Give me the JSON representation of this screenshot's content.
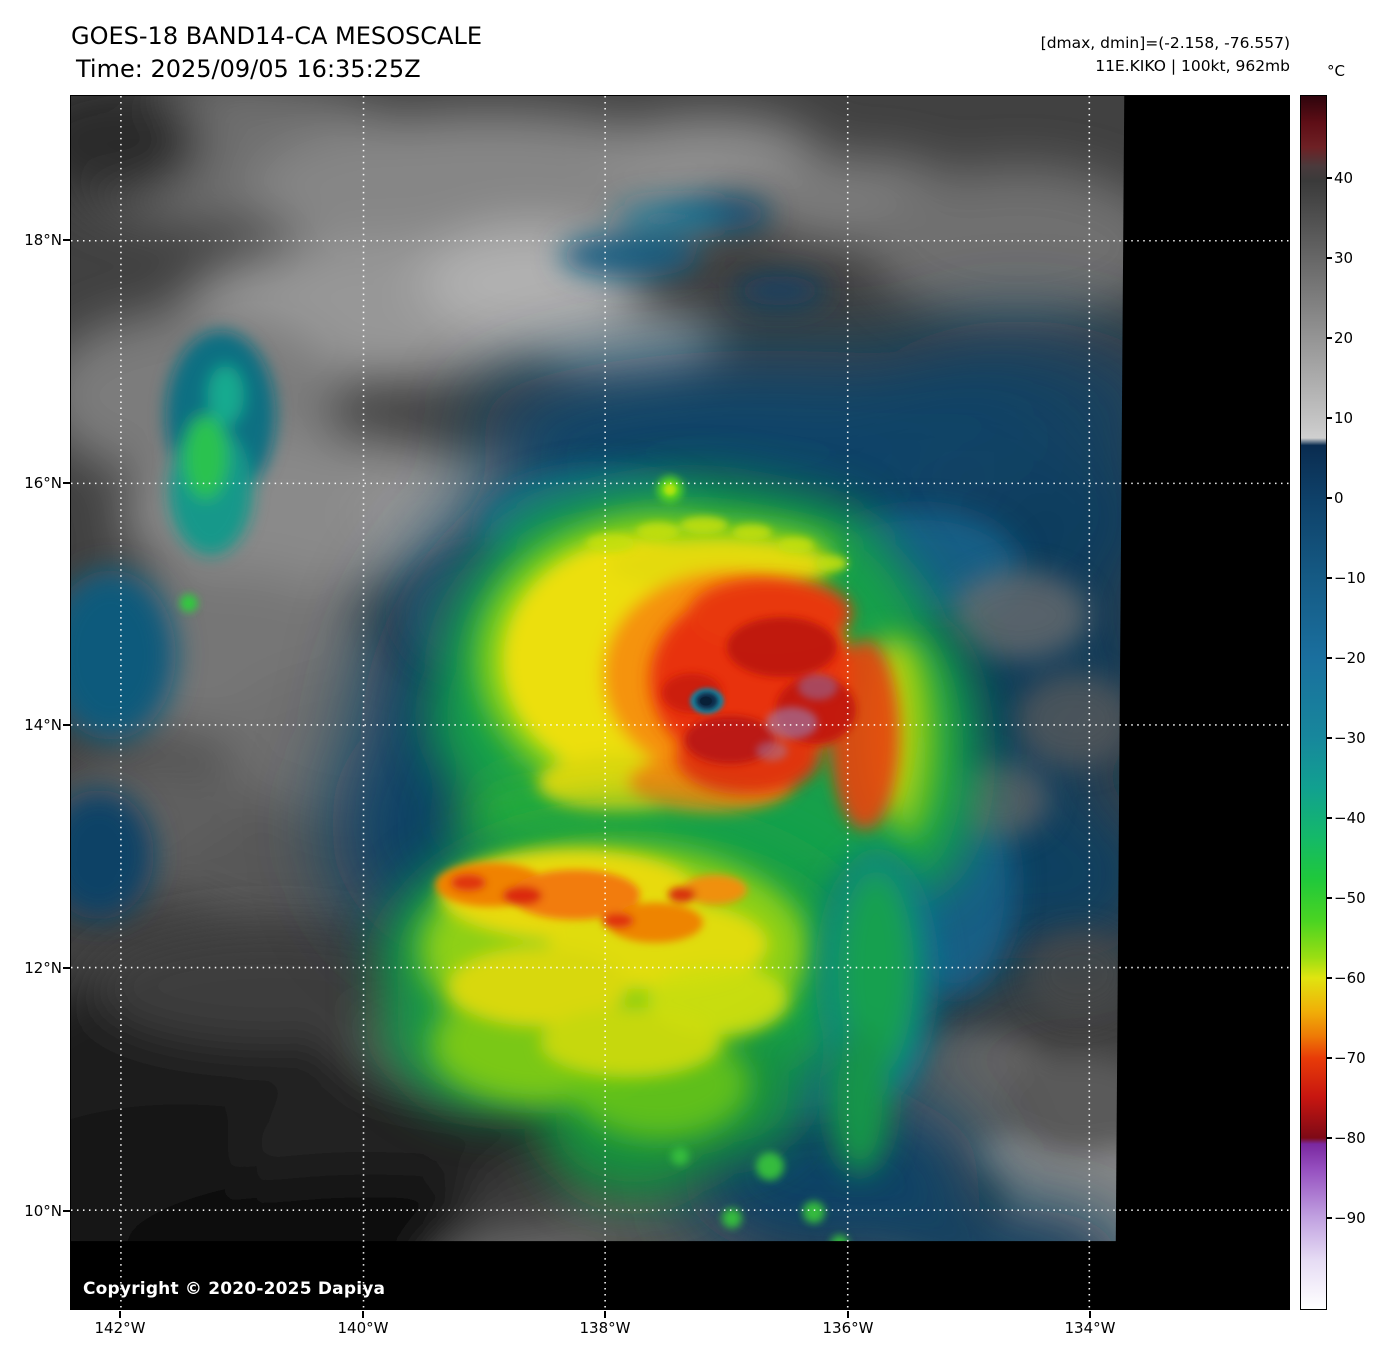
{
  "header": {
    "title": "GOES-18 BAND14-CA MESOSCALE",
    "time": "Time: 2025/09/05 16:35:25Z",
    "dmax_dmin": "[dmax, dmin]=(-2.158, -76.557)",
    "storm": "11E.KIKO | 100kt, 962mb"
  },
  "colorbar": {
    "unit": "°C",
    "ticks": [
      "40",
      "30",
      "20",
      "10",
      "0",
      "−10",
      "−20",
      "−30",
      "−40",
      "−50",
      "−60",
      "−70",
      "−80",
      "−90"
    ]
  },
  "axes": {
    "lat": [
      "18°N",
      "16°N",
      "14°N",
      "12°N",
      "10°N"
    ],
    "lon": [
      "142°W",
      "140°W",
      "138°W",
      "136°W",
      "134°W"
    ]
  },
  "footer": {
    "copyright": "Copyright © 2020-2025 Dapiya"
  }
}
